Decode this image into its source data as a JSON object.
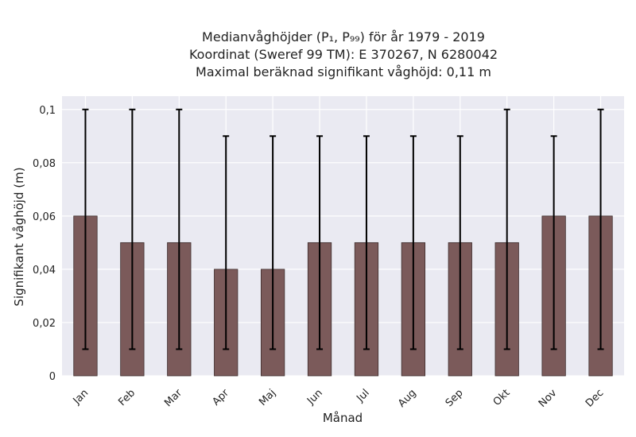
{
  "chart_data": {
    "type": "bar",
    "title_lines": [
      "Medianvåghöjder (P₁, P₉₉) för år 1979 - 2019",
      "Koordinat (Sweref 99 TM): E 370267, N 6280042",
      "Maximal beräknad signifikant våghöjd: 0,11 m"
    ],
    "xlabel": "Månad",
    "ylabel": "Signifikant våghöjd (m)",
    "categories": [
      "Jan",
      "Feb",
      "Mar",
      "Apr",
      "Maj",
      "Jun",
      "Jul",
      "Aug",
      "Sep",
      "Okt",
      "Nov",
      "Dec"
    ],
    "series": [
      {
        "values": [
          0.06,
          0.05,
          0.05,
          0.04,
          0.04,
          0.05,
          0.05,
          0.05,
          0.05,
          0.05,
          0.06,
          0.06
        ],
        "error_low": [
          0.01,
          0.01,
          0.01,
          0.01,
          0.01,
          0.01,
          0.01,
          0.01,
          0.01,
          0.01,
          0.01,
          0.01
        ],
        "error_high": [
          0.1,
          0.1,
          0.1,
          0.09,
          0.09,
          0.09,
          0.09,
          0.09,
          0.09,
          0.1,
          0.09,
          0.1
        ]
      }
    ],
    "ylim": [
      0,
      0.105
    ],
    "yticks": [
      0,
      0.02,
      0.04,
      0.06,
      0.08,
      0.1
    ],
    "ytick_labels": [
      "0",
      "0,02",
      "0,04",
      "0,06",
      "0,08",
      "0,1"
    ],
    "grid": true,
    "colors": {
      "bar": "#7b5a5a",
      "bar_edge": "#3e2e2e",
      "error_bar": "#000000",
      "plot_background": "#eaeaf2",
      "grid": "#ffffff"
    }
  }
}
